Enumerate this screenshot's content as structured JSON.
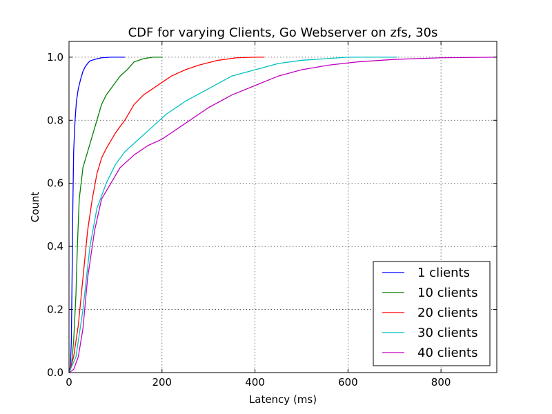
{
  "chart_data": {
    "type": "line",
    "title": "CDF for varying Clients, Go Webserver on zfs, 30s",
    "xlabel": "Latency (ms)",
    "ylabel": "Count",
    "xlim": [
      0,
      920
    ],
    "ylim": [
      0,
      1.05
    ],
    "xticks": [
      0,
      200,
      400,
      600,
      800
    ],
    "yticks": [
      0.0,
      0.2,
      0.4,
      0.6,
      0.8,
      1.0
    ],
    "xtick_labels": [
      "0",
      "200",
      "400",
      "600",
      "800"
    ],
    "ytick_labels": [
      "0.0",
      "0.2",
      "0.4",
      "0.6",
      "0.8",
      "1.0"
    ],
    "grid": true,
    "legend_position": "lower-right",
    "series": [
      {
        "name": "1 clients",
        "color": "#0000ff",
        "points": [
          [
            0,
            0
          ],
          [
            3,
            0.02
          ],
          [
            5,
            0.1
          ],
          [
            7,
            0.35
          ],
          [
            8,
            0.5
          ],
          [
            10,
            0.7
          ],
          [
            13,
            0.8
          ],
          [
            16,
            0.86
          ],
          [
            20,
            0.9
          ],
          [
            25,
            0.93
          ],
          [
            30,
            0.955
          ],
          [
            35,
            0.97
          ],
          [
            40,
            0.98
          ],
          [
            45,
            0.988
          ],
          [
            55,
            0.993
          ],
          [
            70,
            0.998
          ],
          [
            90,
            1.0
          ],
          [
            120,
            1.0
          ]
        ]
      },
      {
        "name": "10 clients",
        "color": "#008000",
        "points": [
          [
            0,
            0
          ],
          [
            5,
            0.02
          ],
          [
            10,
            0.1
          ],
          [
            15,
            0.25
          ],
          [
            18,
            0.4
          ],
          [
            22,
            0.55
          ],
          [
            26,
            0.6
          ],
          [
            30,
            0.65
          ],
          [
            40,
            0.7
          ],
          [
            50,
            0.75
          ],
          [
            60,
            0.8
          ],
          [
            70,
            0.85
          ],
          [
            80,
            0.88
          ],
          [
            95,
            0.91
          ],
          [
            110,
            0.94
          ],
          [
            125,
            0.96
          ],
          [
            140,
            0.985
          ],
          [
            160,
            0.995
          ],
          [
            180,
            1.0
          ],
          [
            200,
            1.0
          ]
        ]
      },
      {
        "name": "20 clients",
        "color": "#ff0000",
        "points": [
          [
            0,
            0
          ],
          [
            10,
            0.05
          ],
          [
            20,
            0.15
          ],
          [
            30,
            0.3
          ],
          [
            40,
            0.45
          ],
          [
            50,
            0.55
          ],
          [
            60,
            0.63
          ],
          [
            70,
            0.68
          ],
          [
            80,
            0.71
          ],
          [
            100,
            0.76
          ],
          [
            120,
            0.8
          ],
          [
            140,
            0.85
          ],
          [
            160,
            0.88
          ],
          [
            180,
            0.9
          ],
          [
            200,
            0.92
          ],
          [
            220,
            0.94
          ],
          [
            250,
            0.96
          ],
          [
            280,
            0.975
          ],
          [
            320,
            0.99
          ],
          [
            360,
            0.998
          ],
          [
            400,
            1.0
          ],
          [
            420,
            1.0
          ]
        ]
      },
      {
        "name": "30 clients",
        "color": "#00bfbf",
        "points": [
          [
            0,
            0
          ],
          [
            15,
            0.05
          ],
          [
            30,
            0.2
          ],
          [
            45,
            0.4
          ],
          [
            60,
            0.52
          ],
          [
            80,
            0.6
          ],
          [
            100,
            0.66
          ],
          [
            120,
            0.7
          ],
          [
            150,
            0.74
          ],
          [
            180,
            0.78
          ],
          [
            210,
            0.82
          ],
          [
            250,
            0.86
          ],
          [
            300,
            0.9
          ],
          [
            350,
            0.94
          ],
          [
            400,
            0.96
          ],
          [
            450,
            0.98
          ],
          [
            500,
            0.99
          ],
          [
            550,
            0.995
          ],
          [
            600,
            1.0
          ],
          [
            705,
            1.0
          ]
        ]
      },
      {
        "name": "40 clients",
        "color": "#bf00bf",
        "points": [
          [
            0,
            0
          ],
          [
            10,
            0.01
          ],
          [
            20,
            0.05
          ],
          [
            30,
            0.14
          ],
          [
            40,
            0.3
          ],
          [
            55,
            0.45
          ],
          [
            70,
            0.55
          ],
          [
            90,
            0.6
          ],
          [
            110,
            0.65
          ],
          [
            140,
            0.69
          ],
          [
            170,
            0.72
          ],
          [
            200,
            0.74
          ],
          [
            240,
            0.78
          ],
          [
            300,
            0.84
          ],
          [
            350,
            0.88
          ],
          [
            400,
            0.91
          ],
          [
            450,
            0.94
          ],
          [
            500,
            0.96
          ],
          [
            560,
            0.975
          ],
          [
            620,
            0.985
          ],
          [
            700,
            0.993
          ],
          [
            800,
            0.998
          ],
          [
            920,
            1.0
          ]
        ]
      }
    ]
  }
}
